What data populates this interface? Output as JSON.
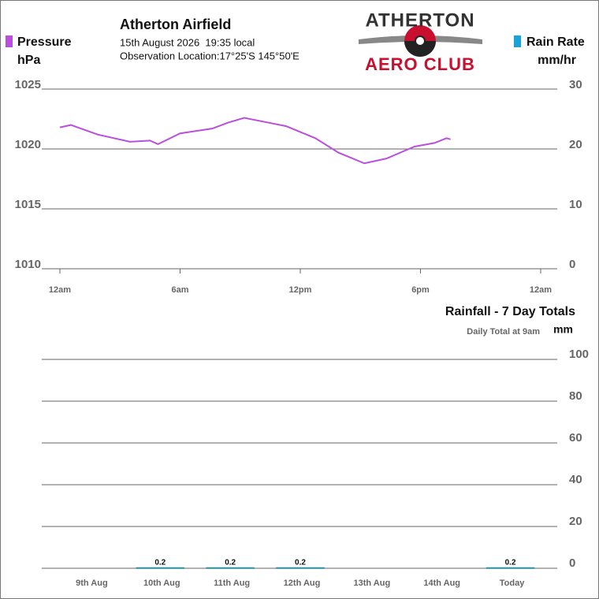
{
  "header": {
    "title": "Atherton Airfield",
    "date_line": "15th August 2026  19:35 local",
    "location_line": "Observation Location:17°25'S 145°50'E"
  },
  "logo": {
    "line1": "ATHERTON",
    "line2": "AERO CLUB"
  },
  "chart_data": [
    {
      "type": "line",
      "ylabel": "hPa",
      "y2label": "mm/hr",
      "x": [
        0,
        0.55,
        1.9,
        3.5,
        4.5,
        4.9,
        6,
        7.6,
        8.4,
        9.2,
        10.4,
        11.3,
        12.75,
        13.9,
        15.2,
        16.3,
        17.7,
        18.7,
        19.3,
        19.5
      ],
      "series": [
        {
          "name": "Pressure",
          "color": "#b94fe0",
          "values": [
            1021.8,
            1022.0,
            1021.2,
            1020.6,
            1020.7,
            1020.4,
            1021.3,
            1021.7,
            1022.2,
            1022.6,
            1022.2,
            1021.9,
            1020.9,
            1019.7,
            1018.8,
            1019.2,
            1020.2,
            1020.5,
            1020.9,
            1020.8
          ]
        },
        {
          "name": "Rain Rate",
          "color": "#1aa3d9",
          "axis": "y2",
          "values": [
            null,
            null,
            null,
            null,
            null,
            null,
            null,
            null,
            null,
            null,
            null,
            null,
            null,
            null,
            null,
            null,
            null,
            null,
            null,
            null
          ]
        }
      ],
      "xlim": [
        0,
        24
      ],
      "xticks": [
        {
          "value": 0,
          "label": "12am"
        },
        {
          "value": 6,
          "label": "6am"
        },
        {
          "value": 12,
          "label": "12pm"
        },
        {
          "value": 18,
          "label": "6pm"
        },
        {
          "value": 24,
          "label": "12am"
        }
      ],
      "ylim": [
        1010,
        1025
      ],
      "yticks": [
        1010,
        1015,
        1020,
        1025
      ],
      "y2lim": [
        0,
        30
      ],
      "y2ticks": [
        0,
        10,
        20,
        30
      ],
      "grid": true
    },
    {
      "type": "bar",
      "title": "Rainfall - 7 Day Totals",
      "subtitle": "Daily Total at 9am",
      "ylabel": "mm",
      "categories": [
        "9th Aug",
        "10th Aug",
        "11th Aug",
        "12th Aug",
        "13th Aug",
        "14th Aug",
        "Today"
      ],
      "values": [
        0,
        0.2,
        0.2,
        0.2,
        0,
        0,
        0.2
      ],
      "value_labels": [
        null,
        "0.2",
        "0.2",
        "0.2",
        null,
        null,
        "0.2"
      ],
      "color": "#2a8fa0",
      "ylim": [
        0,
        100
      ],
      "yticks": [
        0,
        20,
        40,
        60,
        80,
        100
      ],
      "grid": true
    }
  ]
}
